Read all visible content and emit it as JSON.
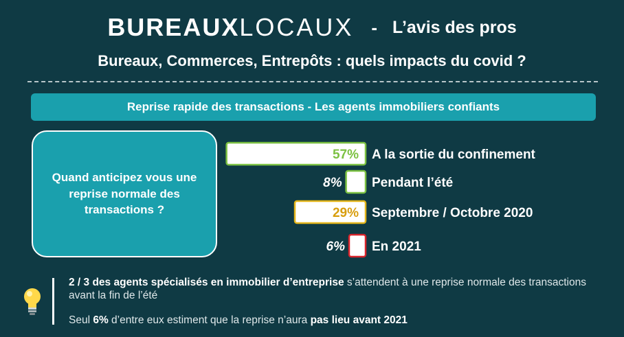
{
  "header": {
    "brand_bold": "BUREAUX",
    "brand_light": "LOCAUX",
    "separator": "-",
    "tagline": "L’avis des pros",
    "title": "Bureaux, Commerces, Entrepôts : quels impacts du covid ?"
  },
  "banner": {
    "text": "Reprise rapide des transactions - Les agents immobiliers confiants"
  },
  "question": {
    "text": "Quand anticipez vous une reprise normale des transactions ?"
  },
  "chart_data": {
    "type": "bar",
    "orientation": "horizontal",
    "categories": [
      "A la sortie du confinement",
      "Pendant l’été",
      "Septembre / Octobre 2020",
      "En 2021"
    ],
    "values": [
      57,
      8,
      29,
      6
    ],
    "value_labels": [
      "57%",
      "8%",
      "29%",
      "6%"
    ],
    "colors": [
      "#7cc142",
      "#7cc142",
      "#e4b51a",
      "#d8232a"
    ],
    "label_colors": [
      "#7cc142",
      "#ffffff",
      "#d89e0e",
      "#ffffff"
    ],
    "bar_fill": "#ffffff",
    "xlim": [
      0,
      100
    ],
    "legend": "none",
    "grid": false
  },
  "footer": {
    "line1_bold": "2 / 3 des agents spécialisés en immobilier d’entreprise",
    "line1_rest": " s’attendent à une reprise normale des transactions avant la fin de l’été",
    "line2_a": "Seul ",
    "line2_bold1": "6%",
    "line2_b": " d’entre eux estiment que la reprise n’aura ",
    "line2_bold2": "pas lieu avant 2021"
  },
  "icons": {
    "bulb": "lightbulb-icon"
  }
}
